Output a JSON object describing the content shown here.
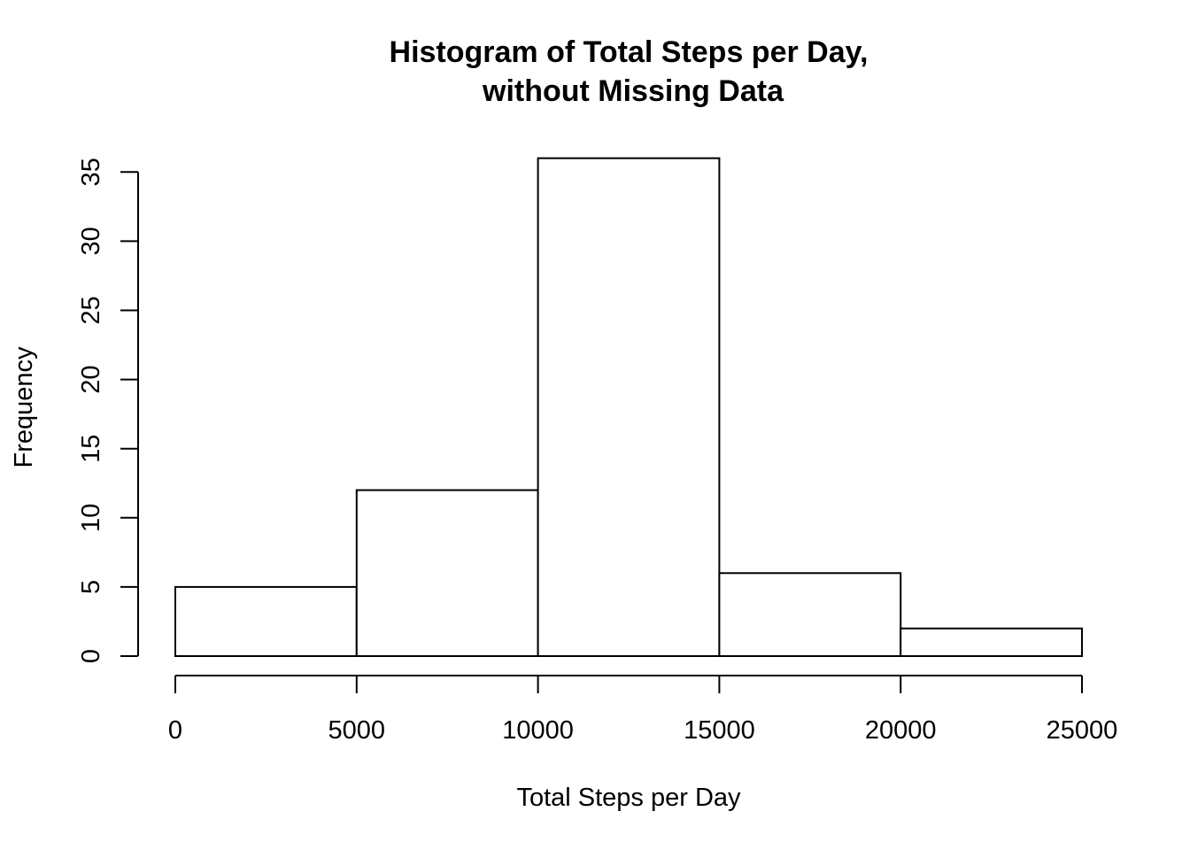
{
  "chart_data": {
    "type": "bar",
    "title_lines": [
      "Histogram of Total Steps per Day,",
      "without Missing Data"
    ],
    "xlabel": "Total Steps per Day",
    "ylabel": "Frequency",
    "bins": [
      {
        "start": 0,
        "end": 5000,
        "count": 5
      },
      {
        "start": 5000,
        "end": 10000,
        "count": 12
      },
      {
        "start": 10000,
        "end": 15000,
        "count": 36
      },
      {
        "start": 15000,
        "end": 20000,
        "count": 6
      },
      {
        "start": 20000,
        "end": 25000,
        "count": 2
      }
    ],
    "xlim": [
      0,
      25000
    ],
    "ylim": [
      0,
      36
    ],
    "x_ticks": [
      0,
      5000,
      10000,
      15000,
      20000,
      25000
    ],
    "y_ticks": [
      0,
      5,
      10,
      15,
      20,
      25,
      30,
      35
    ],
    "grid": false,
    "bar_fill": "#ffffff",
    "bar_stroke": "#000000"
  }
}
